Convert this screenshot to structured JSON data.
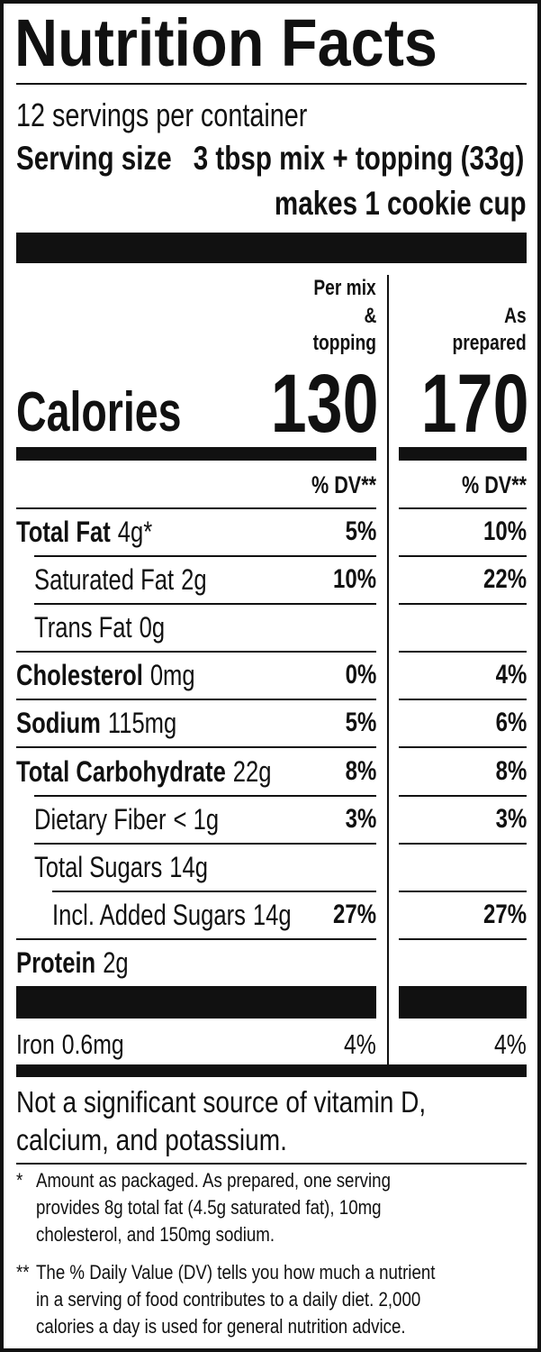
{
  "title": "Nutrition Facts",
  "servings": "12 servings per container",
  "serving_size": {
    "label": "Serving size",
    "value": "3 tbsp mix + topping (33g)",
    "note": "makes 1 cookie cup"
  },
  "calories_label": "Calories",
  "columns": [
    {
      "header": [
        "Per mix",
        "&",
        "topping"
      ],
      "calories": "130",
      "dv_header": "% DV**"
    },
    {
      "header": [
        "As",
        "prepared"
      ],
      "calories": "170",
      "dv_header": "% DV**"
    }
  ],
  "nutrients": [
    {
      "name": "Total Fat",
      "amount": "4g*",
      "dv": [
        "5%",
        "10%"
      ],
      "level": 0
    },
    {
      "name": "Saturated Fat",
      "amount": "2g",
      "dv": [
        "10%",
        "22%"
      ],
      "level": 1
    },
    {
      "name": "Trans Fat",
      "amount": "0g",
      "level": 1
    },
    {
      "name": "Cholesterol",
      "amount": "0mg",
      "dv": [
        "0%",
        "4%"
      ],
      "level": 0
    },
    {
      "name": "Sodium",
      "amount": "115mg",
      "dv": [
        "5%",
        "6%"
      ],
      "level": 0
    },
    {
      "name": "Total Carbohydrate",
      "amount": "22g",
      "dv": [
        "8%",
        "8%"
      ],
      "level": 0
    },
    {
      "name": "Dietary Fiber",
      "amount": "< 1g",
      "dv": [
        "3%",
        "3%"
      ],
      "level": 1
    },
    {
      "name": "Total Sugars",
      "amount": "14g",
      "level": 1
    },
    {
      "name": "Incl. Added Sugars",
      "amount": "14g",
      "dv": [
        "27%",
        "27%"
      ],
      "level": 2
    },
    {
      "name": "Protein",
      "amount": "2g",
      "level": 0
    }
  ],
  "minerals": [
    {
      "name": "Iron",
      "amount": "0.6mg",
      "dv": [
        "4%",
        "4%"
      ]
    }
  ],
  "not_significant": [
    "Not a significant source of vitamin D,",
    "calcium, and potassium."
  ],
  "footnotes": [
    {
      "mark": "*",
      "lines": [
        "Amount as packaged. As prepared, one serving",
        "provides 8g total fat (4.5g saturated fat), 10mg",
        "cholesterol, and 150mg sodium."
      ]
    },
    {
      "mark": "**",
      "lines": [
        "The % Daily Value (DV) tells you how much a nutrient",
        "in a serving of food contributes to a daily diet. 2,000",
        "calories a day is used for general nutrition advice."
      ]
    }
  ]
}
